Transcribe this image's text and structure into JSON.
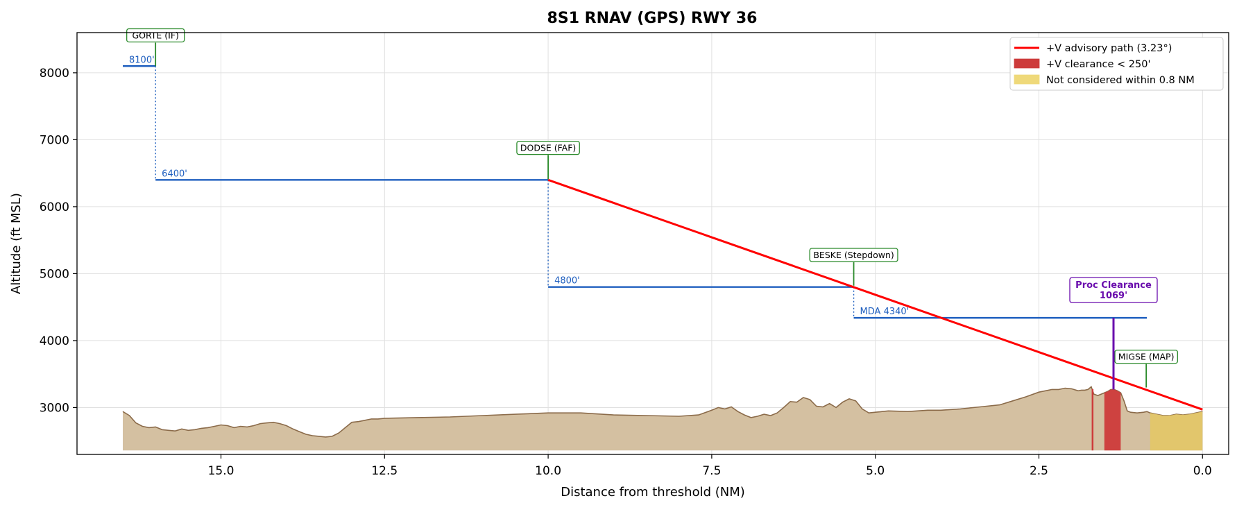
{
  "chart_data": {
    "type": "line",
    "title": "8S1  RNAV (GPS) RWY 36",
    "xlabel": "Distance from threshold (NM)",
    "ylabel": "Altitude (ft MSL)",
    "xlim": [
      17.2,
      -0.4
    ],
    "ylim": [
      2300,
      8600
    ],
    "x_inverted": true,
    "grid": true,
    "legend_position": "top-right",
    "x_ticks": [
      15.0,
      12.5,
      10.0,
      7.5,
      5.0,
      2.5,
      0.0
    ],
    "x_tick_labels": [
      "15.0",
      "12.5",
      "10.0",
      "7.5",
      "5.0",
      "2.5",
      "0.0"
    ],
    "y_ticks": [
      3000,
      4000,
      5000,
      6000,
      7000,
      8000
    ],
    "y_tick_labels": [
      "3000",
      "4000",
      "5000",
      "6000",
      "7000",
      "8000"
    ],
    "legend": [
      {
        "label": "+V advisory path (3.23°)",
        "kind": "line",
        "color": "#ff0000"
      },
      {
        "label": "+V clearance < 250'",
        "kind": "patch",
        "color": "#cd3b3b"
      },
      {
        "label": "Not considered within 0.8 NM",
        "kind": "patch",
        "color": "#efd97a"
      }
    ],
    "altitude_segments": [
      {
        "label": "8100'",
        "from": 16.5,
        "to": 16.0,
        "altitude": 8100
      },
      {
        "label": "6400'",
        "from": 16.0,
        "to": 10.0,
        "altitude": 6400
      },
      {
        "label": "4800'",
        "from": 10.0,
        "to": 5.33,
        "altitude": 4800
      },
      {
        "label": "MDA 4340'",
        "from": 5.33,
        "to": 0.85,
        "altitude": 4340
      }
    ],
    "step_downs": [
      {
        "x": 16.0,
        "from": 8100,
        "to": 6400
      },
      {
        "x": 10.0,
        "from": 6400,
        "to": 4800
      },
      {
        "x": 5.33,
        "from": 4800,
        "to": 4340
      }
    ],
    "advisory_path": {
      "name": "+V advisory path (3.23°)",
      "x": [
        10.0,
        0.0
      ],
      "y": [
        6400,
        2970
      ]
    },
    "fixes": [
      {
        "label": "GORTE (IF)",
        "x": 16.0,
        "line_top": 8450,
        "line_bottom": 8100
      },
      {
        "label": "DODSE (FAF)",
        "x": 10.0,
        "line_top": 6770,
        "line_bottom": 6410
      },
      {
        "label": "BESKE (Stepdown)",
        "x": 5.33,
        "line_top": 5170,
        "line_bottom": 4820
      },
      {
        "label": "MIGSE (MAP)",
        "x": 0.86,
        "line_top": 3650,
        "line_bottom": 3300
      }
    ],
    "proc_clearance": {
      "label": "Proc Clearance\n1069'",
      "x": 1.36,
      "from": 3270,
      "to": 4340
    },
    "terrain": {
      "baseline": 2360,
      "x": [
        16.5,
        16.4,
        16.3,
        16.2,
        16.1,
        16.0,
        15.9,
        15.8,
        15.7,
        15.6,
        15.5,
        15.4,
        15.3,
        15.2,
        15.1,
        15.0,
        14.9,
        14.8,
        14.7,
        14.6,
        14.5,
        14.4,
        14.3,
        14.2,
        14.1,
        14.0,
        13.9,
        13.8,
        13.7,
        13.6,
        13.5,
        13.4,
        13.3,
        13.2,
        13.1,
        13.0,
        12.9,
        12.8,
        12.7,
        12.6,
        12.5,
        12.0,
        11.5,
        11.0,
        10.5,
        10.0,
        9.5,
        9.0,
        8.5,
        8.0,
        7.7,
        7.5,
        7.4,
        7.3,
        7.2,
        7.1,
        7.0,
        6.9,
        6.8,
        6.7,
        6.6,
        6.5,
        6.4,
        6.3,
        6.2,
        6.1,
        6.0,
        5.9,
        5.8,
        5.7,
        5.6,
        5.5,
        5.4,
        5.3,
        5.2,
        5.1,
        5.0,
        4.8,
        4.5,
        4.2,
        4.0,
        3.7,
        3.4,
        3.1,
        2.9,
        2.7,
        2.5,
        2.4,
        2.3,
        2.2,
        2.1,
        2.0,
        1.9,
        1.85,
        1.8,
        1.75,
        1.7,
        1.66,
        1.6,
        1.5,
        1.45,
        1.4,
        1.35,
        1.3,
        1.25,
        1.2,
        1.15,
        1.1,
        1.0,
        0.9,
        0.85,
        0.8,
        0.7,
        0.6,
        0.5,
        0.4,
        0.3,
        0.2,
        0.1,
        0.0
      ],
      "y": [
        2940,
        2880,
        2770,
        2720,
        2700,
        2710,
        2670,
        2660,
        2650,
        2680,
        2660,
        2670,
        2690,
        2700,
        2720,
        2740,
        2730,
        2700,
        2720,
        2710,
        2730,
        2760,
        2770,
        2780,
        2760,
        2730,
        2680,
        2640,
        2600,
        2580,
        2570,
        2560,
        2570,
        2620,
        2700,
        2780,
        2790,
        2810,
        2830,
        2830,
        2840,
        2850,
        2860,
        2880,
        2900,
        2920,
        2920,
        2890,
        2880,
        2870,
        2890,
        2960,
        3000,
        2980,
        3010,
        2940,
        2890,
        2850,
        2870,
        2900,
        2880,
        2920,
        3000,
        3090,
        3080,
        3150,
        3120,
        3020,
        3010,
        3060,
        3000,
        3080,
        3130,
        3100,
        2980,
        2920,
        2930,
        2950,
        2940,
        2960,
        2960,
        2980,
        3010,
        3040,
        3100,
        3160,
        3230,
        3250,
        3270,
        3270,
        3290,
        3280,
        3250,
        3260,
        3260,
        3270,
        3310,
        3200,
        3180,
        3220,
        3240,
        3270,
        3270,
        3250,
        3220,
        3100,
        2950,
        2930,
        2920,
        2930,
        2940,
        2920,
        2900,
        2880,
        2880,
        2900,
        2890,
        2900,
        2920,
        2940
      ]
    },
    "clearance_warning_band": {
      "x_from": 1.5,
      "x_to": 1.25,
      "label": "+V clearance < 250'"
    },
    "clearance_warning_line": {
      "x": 1.68
    },
    "not_considered_band": {
      "x_from": 0.8,
      "x_to": 0.0,
      "label": "Not considered within 0.8 NM"
    },
    "colors": {
      "advisory_path": "#ff0000",
      "altitude": "#1f5fbf",
      "fix": "#2a8a2a",
      "proc": "#6a0dad",
      "terrain_fill": "#d4c0a1",
      "terrain_edge": "#8b6b4a",
      "clearance": "#cd3b3b",
      "not_considered": "#e3c766",
      "grid": "#e0e0e0"
    }
  }
}
